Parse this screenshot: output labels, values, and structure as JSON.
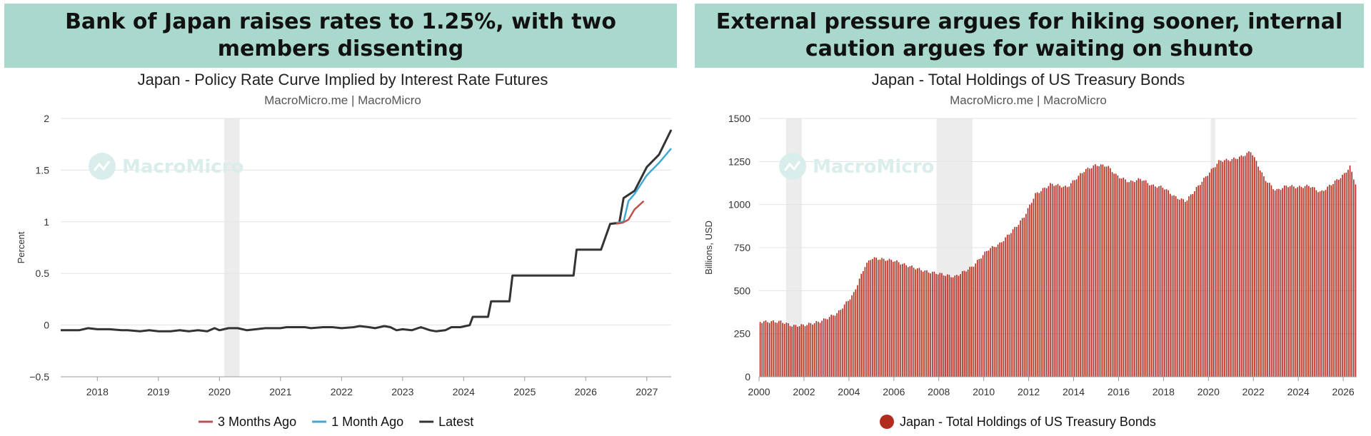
{
  "panels": [
    {
      "headline": "Bank of Japan raises rates to 1.25%, with two members dissenting",
      "title": "Japan - Policy Rate Curve Implied by Interest Rate Futures",
      "source": "MacroMicro.me | MacroMicro",
      "watermark": "MacroMicro"
    },
    {
      "headline": "External pressure argues for hiking sooner, internal caution argues for waiting on shunto",
      "title": "Japan - Total Holdings of US Treasury Bonds",
      "source": "MacroMicro.me | MacroMicro",
      "watermark": "MacroMicro"
    }
  ],
  "chart_data": [
    {
      "type": "line",
      "title": "Japan - Policy Rate Curve Implied by Interest Rate Futures",
      "ylabel": "Percent",
      "ylim": [
        -0.5,
        2
      ],
      "xlim": [
        2017.4,
        2027.4
      ],
      "x_ticks": [
        "2018",
        "2019",
        "2020",
        "2021",
        "2022",
        "2023",
        "2024",
        "2025",
        "2026",
        "2027"
      ],
      "y_ticks": [
        "2",
        "1.5",
        "1",
        "0.5",
        "0",
        "−0.5"
      ],
      "y_tick_values": [
        2,
        1.5,
        1,
        0.5,
        0,
        -0.5
      ],
      "grid": true,
      "legend_position": "bottom",
      "shaded_ranges": [
        [
          2020.08,
          2020.33
        ]
      ],
      "series": [
        {
          "name": "3 Months Ago",
          "color": "#c0504d",
          "x": [
            2026.5,
            2026.6,
            2026.7,
            2026.8,
            2026.95
          ],
          "y": [
            0.98,
            0.99,
            1.02,
            1.12,
            1.2
          ]
        },
        {
          "name": "1 Month Ago",
          "color": "#3fa9d6",
          "x": [
            2026.5,
            2026.62,
            2026.7,
            2026.8,
            2027.0,
            2027.2,
            2027.4
          ],
          "y": [
            0.99,
            1.0,
            1.2,
            1.27,
            1.45,
            1.57,
            1.71
          ]
        },
        {
          "name": "Latest",
          "color": "#333333",
          "x": [
            2017.4,
            2017.7,
            2017.85,
            2018.0,
            2018.2,
            2018.4,
            2018.5,
            2018.7,
            2018.85,
            2019.0,
            2019.2,
            2019.35,
            2019.5,
            2019.65,
            2019.8,
            2019.92,
            2020.0,
            2020.15,
            2020.3,
            2020.45,
            2020.6,
            2020.75,
            2020.85,
            2021.0,
            2021.1,
            2021.2,
            2021.4,
            2021.5,
            2021.7,
            2021.85,
            2022.0,
            2022.2,
            2022.3,
            2022.45,
            2022.55,
            2022.7,
            2022.8,
            2022.9,
            2023.0,
            2023.15,
            2023.3,
            2023.45,
            2023.55,
            2023.7,
            2023.8,
            2023.95,
            2024.1,
            2024.15,
            2024.4,
            2024.45,
            2024.75,
            2024.8,
            2025.0,
            2025.4,
            2025.5,
            2025.8,
            2025.85,
            2026.15,
            2026.25,
            2026.4,
            2026.55,
            2026.62,
            2026.8,
            2027.0,
            2027.2,
            2027.4
          ],
          "y": [
            -0.05,
            -0.05,
            -0.03,
            -0.04,
            -0.04,
            -0.05,
            -0.05,
            -0.06,
            -0.05,
            -0.06,
            -0.06,
            -0.05,
            -0.06,
            -0.05,
            -0.06,
            -0.03,
            -0.05,
            -0.03,
            -0.03,
            -0.05,
            -0.04,
            -0.03,
            -0.03,
            -0.03,
            -0.02,
            -0.02,
            -0.02,
            -0.03,
            -0.02,
            -0.02,
            -0.03,
            -0.02,
            -0.01,
            -0.02,
            -0.03,
            -0.01,
            -0.02,
            -0.05,
            -0.04,
            -0.05,
            -0.02,
            -0.05,
            -0.06,
            -0.05,
            -0.02,
            -0.02,
            0.0,
            0.08,
            0.08,
            0.23,
            0.23,
            0.48,
            0.48,
            0.48,
            0.48,
            0.48,
            0.73,
            0.73,
            0.73,
            0.98,
            0.99,
            1.23,
            1.3,
            1.53,
            1.65,
            1.89
          ]
        }
      ]
    },
    {
      "type": "bar",
      "title": "Japan - Total Holdings of US Treasury Bonds",
      "ylabel": "Billions, USD",
      "ylim": [
        0,
        1500
      ],
      "xlim": [
        2000,
        2026.6
      ],
      "x_ticks": [
        "2000",
        "2002",
        "2004",
        "2006",
        "2008",
        "2010",
        "2012",
        "2014",
        "2016",
        "2018",
        "2020",
        "2022",
        "2024",
        "2026"
      ],
      "y_ticks": [
        "1500",
        "1250",
        "1000",
        "750",
        "500",
        "250",
        "0"
      ],
      "y_tick_values": [
        1500,
        1250,
        1000,
        750,
        500,
        250,
        0
      ],
      "grid": true,
      "legend_position": "bottom",
      "shaded_ranges": [
        [
          2001.2,
          2001.9
        ],
        [
          2007.9,
          2009.5
        ],
        [
          2020.1,
          2020.3
        ]
      ],
      "series": [
        {
          "name": "Japan - Total Holdings of US Treasury Bonds",
          "color": "#b22b1f",
          "anchor_year": [
            2000.0,
            2001.0,
            2001.5,
            2002.0,
            2002.7,
            2003.5,
            2004.2,
            2004.7,
            2005.0,
            2006.0,
            2006.5,
            2007.5,
            2008.0,
            2008.7,
            2009.5,
            2010.2,
            2010.7,
            2011.5,
            2011.8,
            2012.3,
            2013.0,
            2013.7,
            2014.5,
            2015.0,
            2015.5,
            2015.9,
            2016.5,
            2017.0,
            2017.5,
            2018.0,
            2018.5,
            2019.0,
            2019.5,
            2020.0,
            2020.5,
            2021.0,
            2021.5,
            2021.9,
            2022.5,
            2023.0,
            2023.5,
            2024.0,
            2024.5,
            2025.0,
            2025.5,
            2026.0,
            2026.3,
            2026.6
          ],
          "anchor_value": [
            320,
            320,
            295,
            300,
            320,
            370,
            480,
            640,
            690,
            675,
            650,
            610,
            600,
            580,
            640,
            740,
            770,
            880,
            930,
            1060,
            1120,
            1100,
            1200,
            1230,
            1225,
            1170,
            1130,
            1150,
            1110,
            1100,
            1045,
            1020,
            1100,
            1180,
            1255,
            1260,
            1280,
            1310,
            1150,
            1080,
            1110,
            1100,
            1110,
            1070,
            1120,
            1170,
            1220,
            1100
          ]
        }
      ]
    }
  ]
}
